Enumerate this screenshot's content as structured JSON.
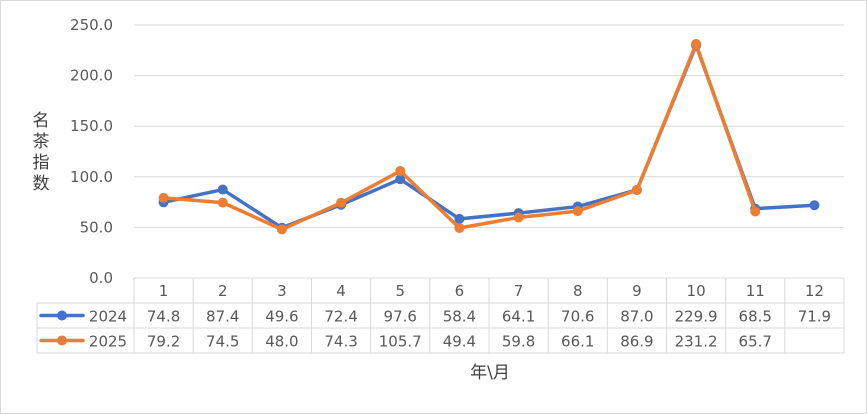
{
  "chart_data": {
    "type": "line",
    "xlabel": "年\\月",
    "ylabel": "名茶指数",
    "ylim": [
      0,
      250
    ],
    "yticks": [
      "0.0",
      "50.0",
      "100.0",
      "150.0",
      "200.0",
      "250.0"
    ],
    "categories": [
      "1",
      "2",
      "3",
      "4",
      "5",
      "6",
      "7",
      "8",
      "9",
      "10",
      "11",
      "12"
    ],
    "grid": true,
    "legend": "data-table",
    "series": [
      {
        "name": "2024",
        "color": "#4472C4",
        "values": [
          74.8,
          87.4,
          49.6,
          72.4,
          97.6,
          58.4,
          64.1,
          70.6,
          87.0,
          229.9,
          68.5,
          71.9
        ],
        "labels": [
          "74.8",
          "87.4",
          "49.6",
          "72.4",
          "97.6",
          "58.4",
          "64.1",
          "70.6",
          "87.0",
          "229.9",
          "68.5",
          "71.9"
        ]
      },
      {
        "name": "2025",
        "color": "#ED7D31",
        "values": [
          79.2,
          74.5,
          48.0,
          74.3,
          105.7,
          49.4,
          59.8,
          66.1,
          86.9,
          231.2,
          65.7,
          null
        ],
        "labels": [
          "79.2",
          "74.5",
          "48.0",
          "74.3",
          "105.7",
          "49.4",
          "59.8",
          "66.1",
          "86.9",
          "231.2",
          "65.7",
          ""
        ]
      }
    ]
  }
}
